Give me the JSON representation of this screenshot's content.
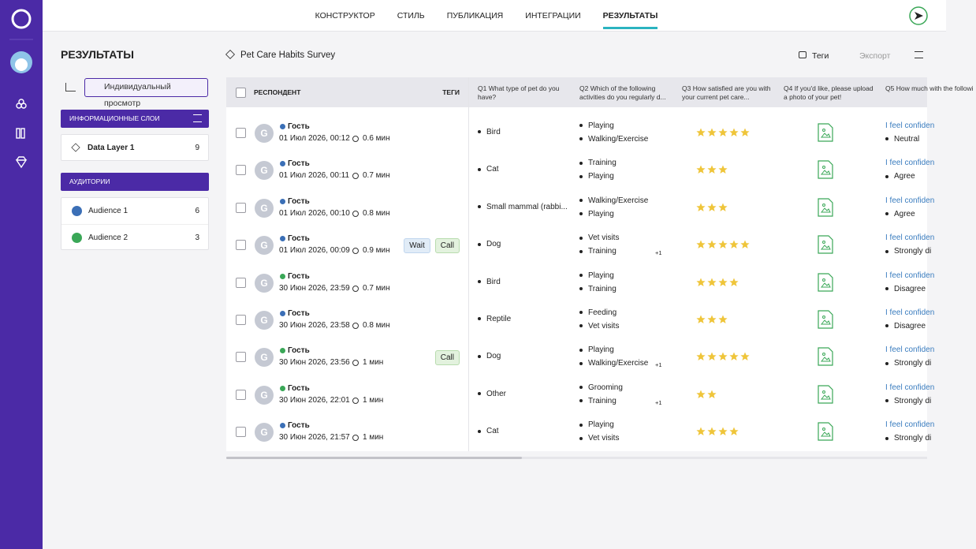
{
  "nav": {
    "tabs": [
      "КОНСТРУКТОР",
      "СТИЛЬ",
      "ПУБЛИКАЦИЯ",
      "ИНТЕГРАЦИИ",
      "РЕЗУЛЬТАТЫ"
    ],
    "active": 4
  },
  "sidebar": {
    "title": "РЕЗУЛЬТАТЫ",
    "view_button": "Индивидуальный просмотр",
    "layers_header": "ИНФОРМАЦИОННЫЕ СЛОИ",
    "layers": [
      {
        "name": "Data Layer 1",
        "count": 9
      }
    ],
    "audiences_header": "АУДИТОРИИ",
    "audiences": [
      {
        "name": "Audience 1",
        "count": 6,
        "color": "#3b6fb6"
      },
      {
        "name": "Audience 2",
        "count": 3,
        "color": "#3aa757"
      }
    ]
  },
  "survey": {
    "title": "Pet Care Habits Survey",
    "tags_button": "Теги",
    "export_button": "Экспорт"
  },
  "table": {
    "columns": [
      "РЕСПОНДЕНТ",
      "ТЕГИ",
      "Q1 What type of pet do you have?",
      "Q2 Which of the following activities do you regularly d...",
      "Q3 How satisfied are you with your current pet care...",
      "Q4 If you'd like, please upload a photo of your pet!",
      "Q5 How much with the followi"
    ],
    "rows": [
      {
        "avatar": "G",
        "name": "Гость",
        "dot": "#3b6fb6",
        "date": "01 Июл 2026, 00:12",
        "duration": "0.6 мин",
        "tags": [],
        "q1": "Bird",
        "q2": [
          "Playing",
          "Walking/Exercise"
        ],
        "q2_more": null,
        "rating": 5,
        "q5_link": "I feel confiden",
        "q5": "Neutral"
      },
      {
        "avatar": "G",
        "name": "Гость",
        "dot": "#3b6fb6",
        "date": "01 Июл 2026, 00:11",
        "duration": "0.7 мин",
        "tags": [],
        "q1": "Cat",
        "q2": [
          "Training",
          "Playing"
        ],
        "q2_more": null,
        "rating": 3,
        "q5_link": "I feel confiden",
        "q5": "Agree"
      },
      {
        "avatar": "G",
        "name": "Гость",
        "dot": "#3b6fb6",
        "date": "01 Июл 2026, 00:10",
        "duration": "0.8 мин",
        "tags": [],
        "q1": "Small mammal (rabbi...",
        "q2": [
          "Walking/Exercise",
          "Playing"
        ],
        "q2_more": null,
        "rating": 3,
        "q5_link": "I feel confiden",
        "q5": "Agree"
      },
      {
        "avatar": "G",
        "name": "Гость",
        "dot": "#3b6fb6",
        "date": "01 Июл 2026, 00:09",
        "duration": "0.9 мин",
        "tags": [
          "Wait",
          "Call"
        ],
        "q1": "Dog",
        "q2": [
          "Vet visits",
          "Training"
        ],
        "q2_more": "+1",
        "rating": 5,
        "q5_link": "I feel confiden",
        "q5": "Strongly di"
      },
      {
        "avatar": "G",
        "name": "Гость",
        "dot": "#3aa757",
        "date": "30 Июн 2026, 23:59",
        "duration": "0.7 мин",
        "tags": [],
        "q1": "Bird",
        "q2": [
          "Playing",
          "Training"
        ],
        "q2_more": null,
        "rating": 4,
        "q5_link": "I feel confiden",
        "q5": "Disagree"
      },
      {
        "avatar": "G",
        "name": "Гость",
        "dot": "#3b6fb6",
        "date": "30 Июн 2026, 23:58",
        "duration": "0.8 мин",
        "tags": [],
        "q1": "Reptile",
        "q2": [
          "Feeding",
          "Vet visits"
        ],
        "q2_more": null,
        "rating": 3,
        "q5_link": "I feel confiden",
        "q5": "Disagree"
      },
      {
        "avatar": "G",
        "name": "Гость",
        "dot": "#3aa757",
        "date": "30 Июн 2026, 23:56",
        "duration": "1 мин",
        "tags": [
          "Call"
        ],
        "q1": "Dog",
        "q2": [
          "Playing",
          "Walking/Exercise"
        ],
        "q2_more": "+1",
        "rating": 5,
        "q5_link": "I feel confiden",
        "q5": "Strongly di"
      },
      {
        "avatar": "G",
        "name": "Гость",
        "dot": "#3aa757",
        "date": "30 Июн 2026, 22:01",
        "duration": "1 мин",
        "tags": [],
        "q1": "Other",
        "q2": [
          "Grooming",
          "Training"
        ],
        "q2_more": "+1",
        "rating": 2,
        "q5_link": "I feel confiden",
        "q5": "Strongly di"
      },
      {
        "avatar": "G",
        "name": "Гость",
        "dot": "#3b6fb6",
        "date": "30 Июн 2026, 21:57",
        "duration": "1 мин",
        "tags": [],
        "q1": "Cat",
        "q2": [
          "Playing",
          "Vet visits"
        ],
        "q2_more": null,
        "rating": 4,
        "q5_link": "I feel confiden",
        "q5": "Strongly di"
      }
    ]
  }
}
